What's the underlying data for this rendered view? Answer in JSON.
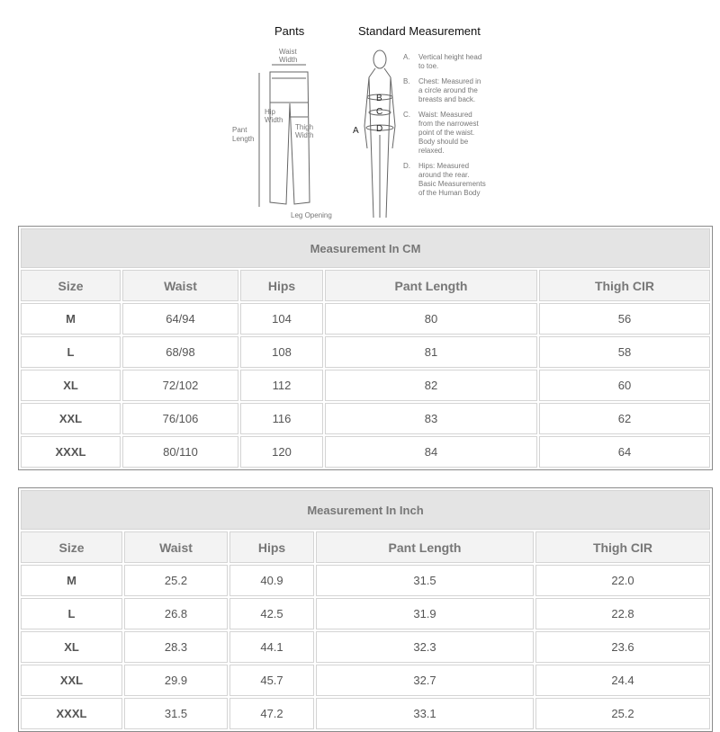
{
  "diagram": {
    "pants_title": "Pants",
    "standard_title": "Standard Measurement",
    "pants_labels": {
      "waist": [
        "Waist",
        "Width"
      ],
      "hip": [
        "Hip",
        "Width"
      ],
      "thigh": [
        "Thigh",
        "Width"
      ],
      "length": [
        "Pant",
        "Length"
      ],
      "leg": "Leg Opening"
    },
    "body_letters": [
      "A",
      "B",
      "C",
      "D"
    ],
    "notes": [
      {
        "letter": "A.",
        "lines": [
          "Vertical height head",
          "to toe."
        ]
      },
      {
        "letter": "B.",
        "lines": [
          "Chest: Measured in",
          "a circle around the",
          "breasts and back."
        ]
      },
      {
        "letter": "C.",
        "lines": [
          "Waist: Measured",
          "from the narrowest",
          "point of the waist.",
          "Body should be",
          "relaxed."
        ]
      },
      {
        "letter": "D.",
        "lines": [
          "Hips: Measured",
          "around the rear.",
          "Basic Measurements",
          "of the Human Body"
        ]
      }
    ]
  },
  "cm_table": {
    "title": "Measurement In CM",
    "headers": [
      "Size",
      "Waist",
      "Hips",
      "Pant Length",
      "Thigh CIR"
    ],
    "rows": [
      [
        "M",
        "64/94",
        "104",
        "80",
        "56"
      ],
      [
        "L",
        "68/98",
        "108",
        "81",
        "58"
      ],
      [
        "XL",
        "72/102",
        "112",
        "82",
        "60"
      ],
      [
        "XXL",
        "76/106",
        "116",
        "83",
        "62"
      ],
      [
        "XXXL",
        "80/110",
        "120",
        "84",
        "64"
      ]
    ]
  },
  "inch_table": {
    "title": "Measurement In Inch",
    "headers": [
      "Size",
      "Waist",
      "Hips",
      "Pant Length",
      "Thigh CIR"
    ],
    "rows": [
      [
        "M",
        "25.2",
        "40.9",
        "31.5",
        "22.0"
      ],
      [
        "L",
        "26.8",
        "42.5",
        "31.9",
        "22.8"
      ],
      [
        "XL",
        "28.3",
        "44.1",
        "32.3",
        "23.6"
      ],
      [
        "XXL",
        "29.9",
        "45.7",
        "32.7",
        "24.4"
      ],
      [
        "XXXL",
        "31.5",
        "47.2",
        "33.1",
        "25.2"
      ]
    ]
  }
}
